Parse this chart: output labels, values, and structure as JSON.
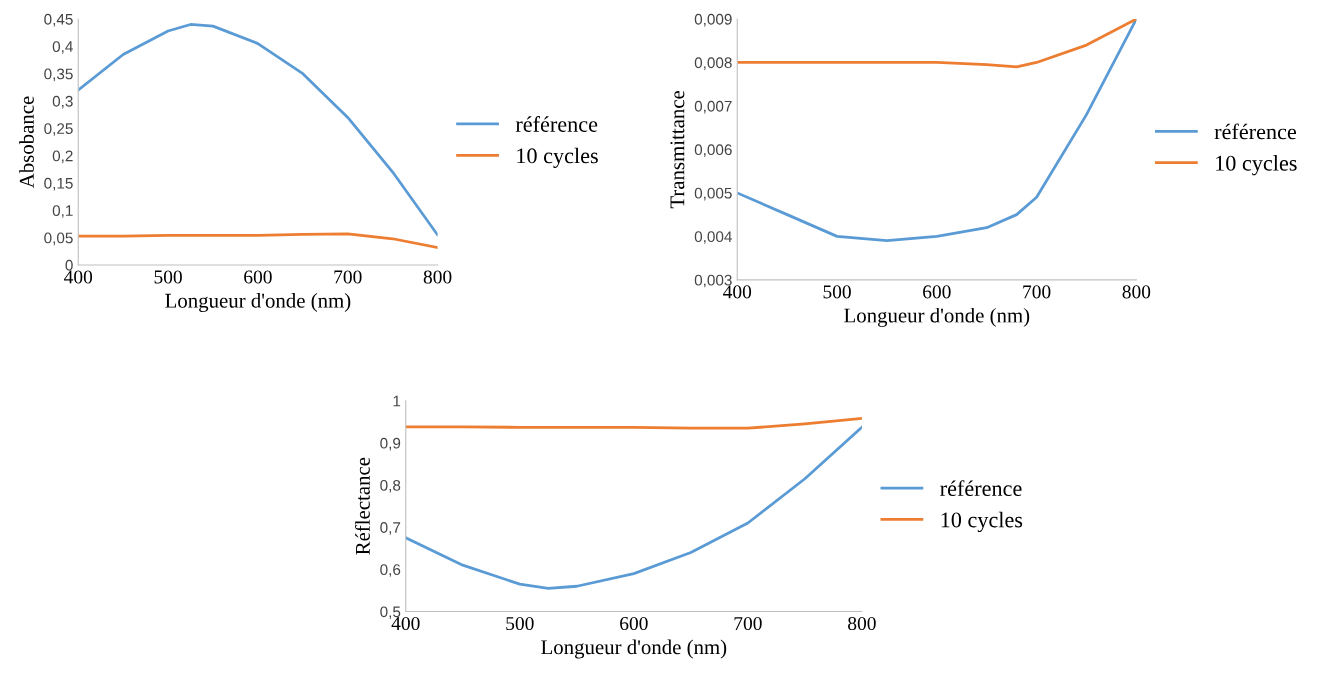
{
  "chart_data": [
    {
      "type": "line",
      "xlabel": "Longueur d'onde (nm)",
      "ylabel": "Absobance",
      "legend": "right",
      "grid": false,
      "x": [
        400,
        450,
        500,
        525,
        550,
        600,
        650,
        700,
        750,
        800
      ],
      "xlim": [
        400,
        800
      ],
      "xticks": [
        400,
        500,
        600,
        700,
        800
      ],
      "ylim": [
        0,
        0.45
      ],
      "yticks": [
        0,
        {
          "value": 0.05,
          "label": "0,05"
        },
        {
          "value": 0.1,
          "label": "0,1"
        },
        {
          "value": 0.15,
          "label": "0,15"
        },
        {
          "value": 0.2,
          "label": "0,2"
        },
        {
          "value": 0.25,
          "label": "0,25"
        },
        {
          "value": 0.3,
          "label": "0,3"
        },
        {
          "value": 0.35,
          "label": "0,35"
        },
        {
          "value": 0.4,
          "label": "0,4"
        },
        {
          "value": 0.45,
          "label": "0,45"
        }
      ],
      "series": [
        {
          "name": "référence",
          "color": "#5b9bd5",
          "values": [
            0.32,
            0.385,
            0.428,
            0.44,
            0.437,
            0.405,
            0.35,
            0.27,
            0.17,
            0.055
          ]
        },
        {
          "name": "10 cycles",
          "color": "#ed7d31",
          "values": [
            0.053,
            0.053,
            0.054,
            0.054,
            0.054,
            0.054,
            0.056,
            0.057,
            0.048,
            0.032
          ]
        }
      ]
    },
    {
      "type": "line",
      "xlabel": "Longueur d'onde (nm)",
      "ylabel": "Transmittance",
      "legend": "right",
      "grid": false,
      "x": [
        400,
        450,
        500,
        550,
        600,
        650,
        680,
        700,
        750,
        800
      ],
      "xlim": [
        400,
        800
      ],
      "xticks": [
        400,
        500,
        600,
        700,
        800
      ],
      "ylim": [
        0.003,
        0.009
      ],
      "yticks": [
        {
          "value": 0.003,
          "label": "0,003"
        },
        {
          "value": 0.004,
          "label": "0,004"
        },
        {
          "value": 0.005,
          "label": "0,005"
        },
        {
          "value": 0.006,
          "label": "0,006"
        },
        {
          "value": 0.007,
          "label": "0,007"
        },
        {
          "value": 0.008,
          "label": "0,008"
        },
        {
          "value": 0.009,
          "label": "0,009"
        }
      ],
      "series": [
        {
          "name": "référence",
          "color": "#5b9bd5",
          "values": [
            0.005,
            0.0045,
            0.004,
            0.0039,
            0.004,
            0.0042,
            0.0045,
            0.0049,
            0.0068,
            0.009
          ]
        },
        {
          "name": "10 cycles",
          "color": "#ed7d31",
          "values": [
            0.008,
            0.008,
            0.008,
            0.008,
            0.008,
            0.00795,
            0.0079,
            0.008,
            0.0084,
            0.009
          ]
        }
      ]
    },
    {
      "type": "line",
      "xlabel": "Longueur d'onde (nm)",
      "ylabel": "Réflectance",
      "legend": "right",
      "grid": false,
      "x": [
        400,
        450,
        500,
        525,
        550,
        600,
        650,
        700,
        750,
        800
      ],
      "xlim": [
        400,
        800
      ],
      "xticks": [
        400,
        500,
        600,
        700,
        800
      ],
      "ylim": [
        0.5,
        1
      ],
      "yticks": [
        {
          "value": 0.5,
          "label": "0,5"
        },
        {
          "value": 0.6,
          "label": "0,6"
        },
        {
          "value": 0.7,
          "label": "0,7"
        },
        {
          "value": 0.8,
          "label": "0,8"
        },
        {
          "value": 0.9,
          "label": "0,9"
        },
        1
      ],
      "series": [
        {
          "name": "référence",
          "color": "#5b9bd5",
          "values": [
            0.675,
            0.61,
            0.565,
            0.555,
            0.56,
            0.59,
            0.64,
            0.71,
            0.815,
            0.937
          ]
        },
        {
          "name": "10 cycles",
          "color": "#ed7d31",
          "values": [
            0.938,
            0.938,
            0.937,
            0.937,
            0.937,
            0.937,
            0.935,
            0.935,
            0.945,
            0.958
          ]
        }
      ]
    }
  ]
}
